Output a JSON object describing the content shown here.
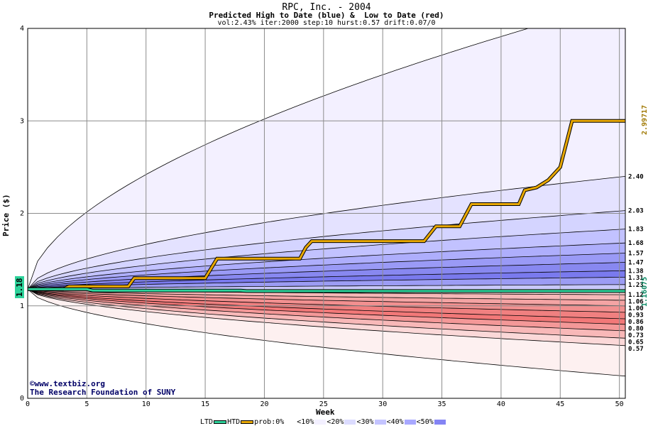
{
  "header": {
    "title": "RPC, Inc. - 2004",
    "subtitle": "Predicted High to Date (blue) &  Low to Date (red)",
    "params": "vol:2.43% iter:2000 step:10 hurst:0.57 drift:0.07/0"
  },
  "credit": {
    "line1": "©www.textbiz.org",
    "line2": "The Research Foundation of SUNY"
  },
  "readouts": {
    "current_price": "1.18",
    "htd_value": "2.99717",
    "ltd_value": "1.16075"
  },
  "legend": [
    {
      "label": "LTD",
      "color": "#2dd29a",
      "kind": "line"
    },
    {
      "label": "HTD",
      "color": "#e8a800",
      "kind": "line"
    },
    {
      "label": "prob:0%",
      "color": "#ffffff",
      "kind": "swatch"
    },
    {
      "label": "<10%",
      "color": "#f3f0ff",
      "kind": "swatch"
    },
    {
      "label": "<20%",
      "color": "#dcdcff",
      "kind": "swatch"
    },
    {
      "label": "<30%",
      "color": "#c4c4ff",
      "kind": "swatch"
    },
    {
      "label": "<40%",
      "color": "#a8a8ff",
      "kind": "swatch"
    },
    {
      "label": "<50%",
      "color": "#8484f4",
      "kind": "swatch"
    }
  ],
  "chart_data": {
    "type": "area",
    "title": "RPC, Inc. - 2004",
    "xlabel": "Week",
    "ylabel": "Price ($)",
    "xlim": [
      0,
      50.5
    ],
    "ylim": [
      0,
      4
    ],
    "x_ticks": [
      0,
      5,
      10,
      15,
      20,
      25,
      30,
      35,
      40,
      45,
      50
    ],
    "y_ticks": [
      0,
      1,
      2,
      3,
      4
    ],
    "grid": true,
    "start_price": 1.18,
    "high_bands_end": [
      4.3,
      2.4,
      2.03,
      1.83,
      1.68,
      1.57,
      1.47,
      1.38,
      1.31,
      1.23
    ],
    "low_bands_end": [
      1.12,
      1.06,
      1.0,
      0.93,
      0.86,
      0.8,
      0.73,
      0.65,
      0.57,
      0.24
    ],
    "band_labels": [
      "2.40",
      "2.03",
      "1.83",
      "1.68",
      "1.57",
      "1.47",
      "1.38",
      "1.31",
      "1.23",
      "1.12",
      "1.06",
      "1.00",
      "0.93",
      "0.86",
      "0.80",
      "0.73",
      "0.65",
      "0.57"
    ],
    "high_fills": [
      "#f3f0ff",
      "#e4e2ff",
      "#d4d4ff",
      "#c2c2ff",
      "#aeaefc",
      "#9a9af6",
      "#8888f0",
      "#7a7aee",
      "#9c9cf4",
      "#c8c8fa"
    ],
    "low_fills": [
      "#f8d0d0",
      "#f6b8b8",
      "#f4a4a4",
      "#f29090",
      "#f08080",
      "#f27878",
      "#f49898",
      "#f8b8b8",
      "#fbd8d8",
      "#fdf0f0"
    ],
    "series": [
      {
        "name": "HTD",
        "color": "#e8a800",
        "x": [
          0,
          3,
          3.5,
          8.5,
          9,
          15,
          16,
          23,
          23.5,
          24,
          33.5,
          34.5,
          36.5,
          37.5,
          41.5,
          42,
          43,
          44,
          45,
          46,
          50.5
        ],
        "y": [
          1.18,
          1.18,
          1.21,
          1.21,
          1.3,
          1.3,
          1.51,
          1.51,
          1.63,
          1.7,
          1.7,
          1.86,
          1.86,
          2.1,
          2.1,
          2.25,
          2.28,
          2.36,
          2.5,
          3.0,
          3.0
        ]
      },
      {
        "name": "LTD",
        "color": "#2dd29a",
        "x": [
          0,
          0.5,
          5,
          5.5,
          18,
          18.5,
          50.5
        ],
        "y": [
          1.18,
          1.18,
          1.18,
          1.165,
          1.165,
          1.16,
          1.16
        ]
      }
    ]
  }
}
